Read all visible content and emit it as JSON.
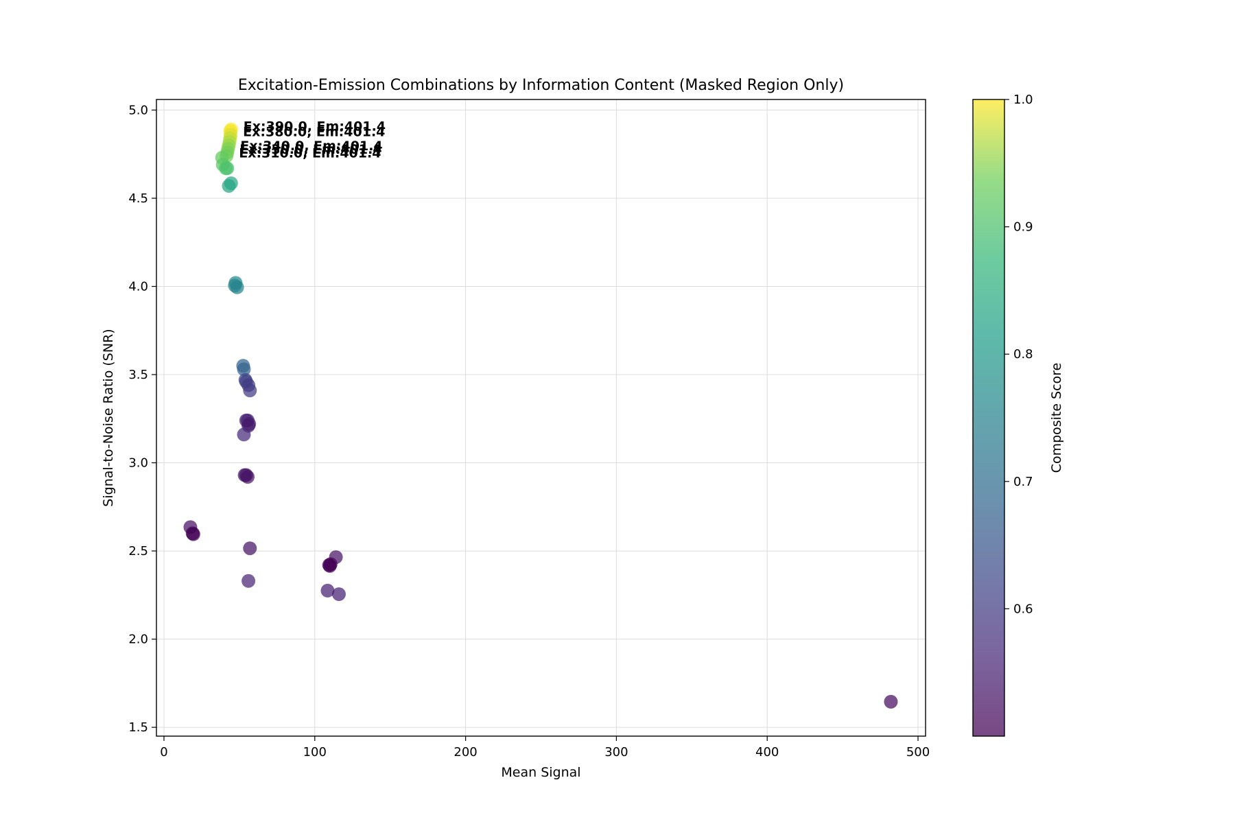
{
  "chart_data": {
    "type": "scatter",
    "title": "Excitation-Emission Combinations by Information Content (Masked Region Only)",
    "xlabel": "Mean Signal",
    "ylabel": "Signal-to-Noise Ratio (SNR)",
    "xlim": [
      -5,
      505
    ],
    "ylim": [
      1.45,
      5.06
    ],
    "xticks": [
      0,
      100,
      200,
      300,
      400,
      500
    ],
    "yticks": [
      1.5,
      2.0,
      2.5,
      3.0,
      3.5,
      4.0,
      4.5,
      5.0
    ],
    "grid": true,
    "colorbar": {
      "label": "Composite Score",
      "range": [
        0.5,
        1.0
      ],
      "ticks": [
        0.6,
        0.7,
        0.8,
        0.9,
        1.0
      ],
      "colormap": "viridis"
    },
    "points": [
      {
        "x": 44.5,
        "y": 4.89,
        "score": 1.0
      },
      {
        "x": 44.0,
        "y": 4.88,
        "score": 0.995
      },
      {
        "x": 44.2,
        "y": 4.86,
        "score": 0.985
      },
      {
        "x": 43.8,
        "y": 4.84,
        "score": 0.975
      },
      {
        "x": 43.5,
        "y": 4.82,
        "score": 0.965
      },
      {
        "x": 43.0,
        "y": 4.8,
        "score": 0.955
      },
      {
        "x": 42.5,
        "y": 4.78,
        "score": 0.945
      },
      {
        "x": 42.0,
        "y": 4.76,
        "score": 0.94
      },
      {
        "x": 41.5,
        "y": 4.74,
        "score": 0.935
      },
      {
        "x": 38.5,
        "y": 4.73,
        "score": 0.925
      },
      {
        "x": 39.0,
        "y": 4.69,
        "score": 0.915
      },
      {
        "x": 41.0,
        "y": 4.67,
        "score": 0.905
      },
      {
        "x": 42.0,
        "y": 4.67,
        "score": 0.9
      },
      {
        "x": 44.5,
        "y": 4.585,
        "score": 0.835
      },
      {
        "x": 43.0,
        "y": 4.57,
        "score": 0.83
      },
      {
        "x": 47.5,
        "y": 4.02,
        "score": 0.765
      },
      {
        "x": 47.0,
        "y": 4.005,
        "score": 0.76
      },
      {
        "x": 48.5,
        "y": 3.995,
        "score": 0.755
      },
      {
        "x": 52.5,
        "y": 3.55,
        "score": 0.68
      },
      {
        "x": 53.0,
        "y": 3.53,
        "score": 0.675
      },
      {
        "x": 54.0,
        "y": 3.47,
        "score": 0.615
      },
      {
        "x": 54.5,
        "y": 3.46,
        "score": 0.61
      },
      {
        "x": 56.0,
        "y": 3.44,
        "score": 0.6
      },
      {
        "x": 57.0,
        "y": 3.41,
        "score": 0.6
      },
      {
        "x": 54.5,
        "y": 3.24,
        "score": 0.555
      },
      {
        "x": 55.5,
        "y": 3.24,
        "score": 0.55
      },
      {
        "x": 56.5,
        "y": 3.22,
        "score": 0.545
      },
      {
        "x": 56.0,
        "y": 3.21,
        "score": 0.54
      },
      {
        "x": 53.0,
        "y": 3.16,
        "score": 0.565
      },
      {
        "x": 53.5,
        "y": 2.93,
        "score": 0.535
      },
      {
        "x": 54.5,
        "y": 2.93,
        "score": 0.53
      },
      {
        "x": 55.5,
        "y": 2.92,
        "score": 0.53
      },
      {
        "x": 17.5,
        "y": 2.635,
        "score": 0.525
      },
      {
        "x": 19.0,
        "y": 2.6,
        "score": 0.51
      },
      {
        "x": 19.5,
        "y": 2.595,
        "score": 0.5
      },
      {
        "x": 57.0,
        "y": 2.515,
        "score": 0.53
      },
      {
        "x": 56.0,
        "y": 2.33,
        "score": 0.56
      },
      {
        "x": 114.0,
        "y": 2.465,
        "score": 0.53
      },
      {
        "x": 110.5,
        "y": 2.425,
        "score": 0.505
      },
      {
        "x": 109.5,
        "y": 2.42,
        "score": 0.5
      },
      {
        "x": 110.0,
        "y": 2.415,
        "score": 0.5
      },
      {
        "x": 108.5,
        "y": 2.275,
        "score": 0.55
      },
      {
        "x": 116.0,
        "y": 2.255,
        "score": 0.55
      },
      {
        "x": 482.0,
        "y": 1.645,
        "score": 0.52
      }
    ],
    "annotations": [
      {
        "text": "Ex:390.0, Em:401.4",
        "x": 44.5,
        "y": 4.89
      },
      {
        "text": "Ex:380.0, Em:401.4",
        "x": 44.2,
        "y": 4.86
      },
      {
        "text": "Ex:340.0, Em:401.4",
        "x": 42.5,
        "y": 4.78
      },
      {
        "text": "Ex:330.0, Em:401.4",
        "x": 42.0,
        "y": 4.76
      },
      {
        "text": "Ex:310.0, Em:401.4",
        "x": 41.5,
        "y": 4.74
      }
    ]
  }
}
